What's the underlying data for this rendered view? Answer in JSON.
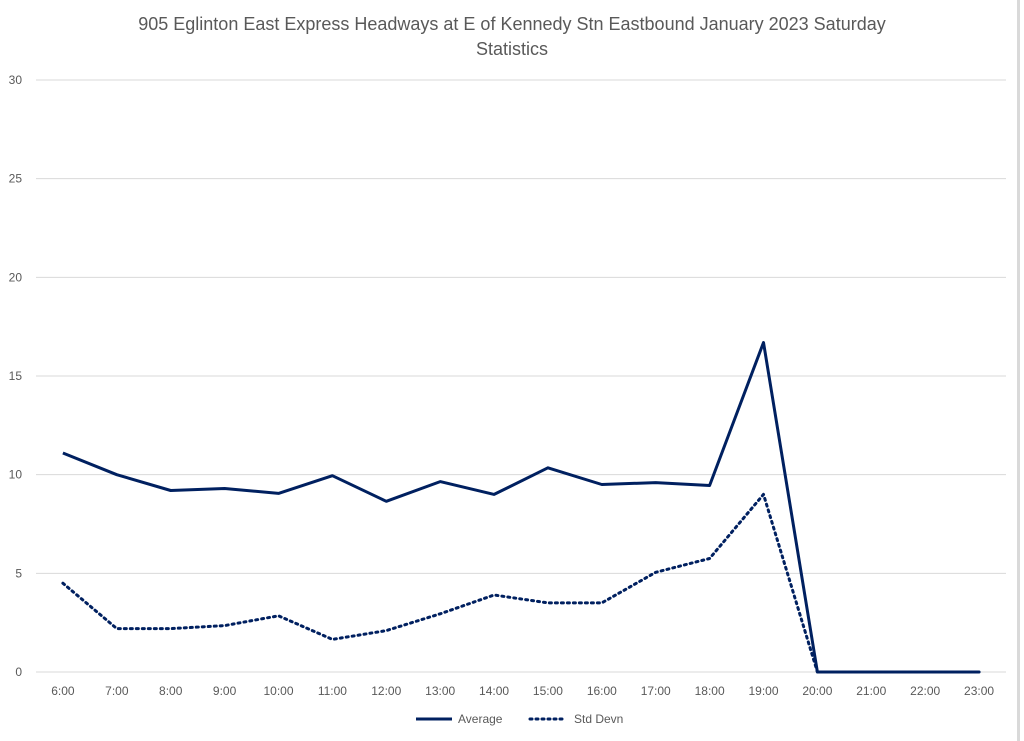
{
  "chart_data": {
    "type": "line",
    "title_line1": "905 Eglinton East Express Headways at E of Kennedy Stn Eastbound January 2023 Saturday",
    "title_line2": "Statistics",
    "xlabel": "",
    "ylabel": "",
    "ylim": [
      0,
      30
    ],
    "yticks": [
      "0",
      "5",
      "10",
      "15",
      "20",
      "25",
      "30"
    ],
    "categories": [
      "6:00",
      "7:00",
      "8:00",
      "9:00",
      "10:00",
      "11:00",
      "12:00",
      "13:00",
      "14:00",
      "15:00",
      "16:00",
      "17:00",
      "18:00",
      "19:00",
      "20:00",
      "21:00",
      "22:00",
      "23:00"
    ],
    "series": [
      {
        "name": "Average",
        "style": "solid",
        "values": [
          11.1,
          10.0,
          9.2,
          9.3,
          9.05,
          9.95,
          8.65,
          9.65,
          9.0,
          10.35,
          9.5,
          9.6,
          9.45,
          16.7,
          0,
          0,
          0,
          0
        ]
      },
      {
        "name": "Std Devn",
        "style": "dotted",
        "values": [
          4.5,
          2.2,
          2.2,
          2.35,
          2.85,
          1.65,
          2.1,
          2.95,
          3.9,
          3.5,
          3.5,
          5.05,
          5.75,
          9.0,
          0,
          0,
          0,
          0
        ]
      }
    ],
    "grid": true,
    "legend": "bottom",
    "colors": {
      "line": "#002060",
      "grid": "#d9d9d9",
      "text": "#595959"
    }
  }
}
